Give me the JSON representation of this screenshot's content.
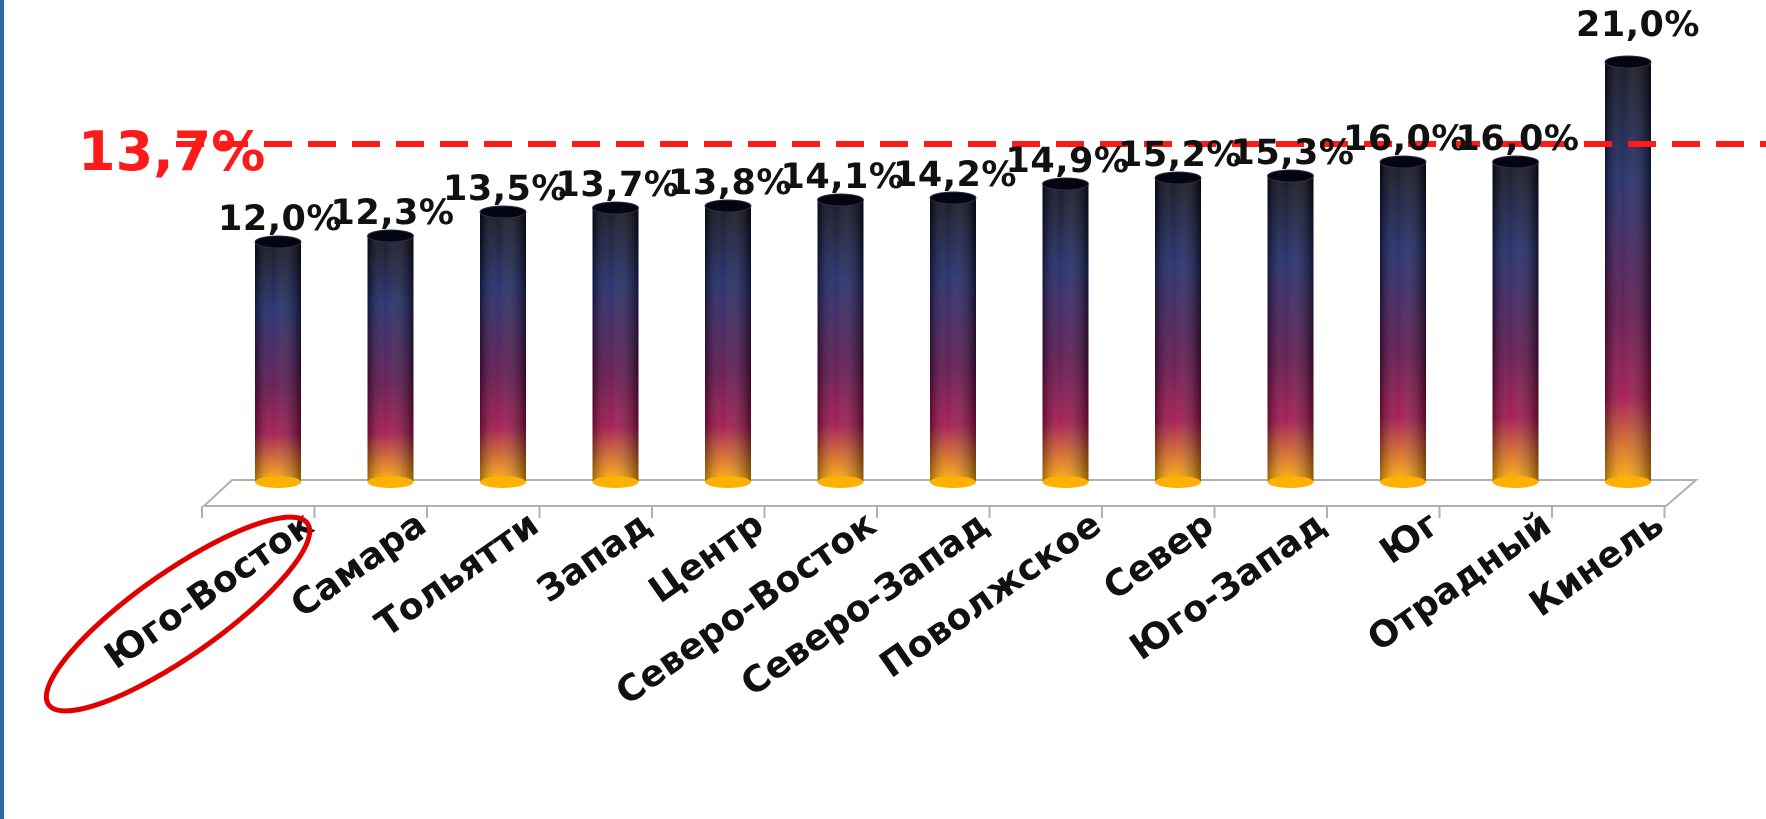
{
  "chart_data": {
    "type": "bar",
    "categories": [
      "Юго-Восток",
      "Самара",
      "Тольятти",
      "Запад",
      "Центр",
      "Северо-Восток",
      "Северо-Запад",
      "Поволжское",
      "Север",
      "Юго-Запад",
      "Юг",
      "Отрадный",
      "Кинель"
    ],
    "values": [
      12.0,
      12.3,
      13.5,
      13.7,
      13.8,
      14.1,
      14.2,
      14.9,
      15.2,
      15.3,
      16.0,
      16.0,
      21.0
    ],
    "value_labels": [
      "12,0%",
      "12,3%",
      "13,5%",
      "13,7%",
      "13,8%",
      "14,1%",
      "14,2%",
      "14,9%",
      "15,2%",
      "15,3%",
      "16,0%",
      "16,0%",
      "21,0%"
    ],
    "reference_line": {
      "value": 13.7,
      "label": "13,7%",
      "style": "dashed"
    },
    "highlighted_category": "Юго-Восток",
    "title": "",
    "xlabel": "",
    "ylabel": "",
    "grid": false,
    "legend": "none"
  },
  "colors": {
    "bar_top": "#0a0a14",
    "bar_upper": "#1a2566",
    "bar_middle": "#5c0f4a",
    "bar_lower": "#a0104a",
    "bar_bottom": "#ffb000",
    "reference_line": "#ff1a1a",
    "highlight_ellipse": "#e00000",
    "frame": "#2d6aa8",
    "floor_line": "#b0b0b0"
  }
}
